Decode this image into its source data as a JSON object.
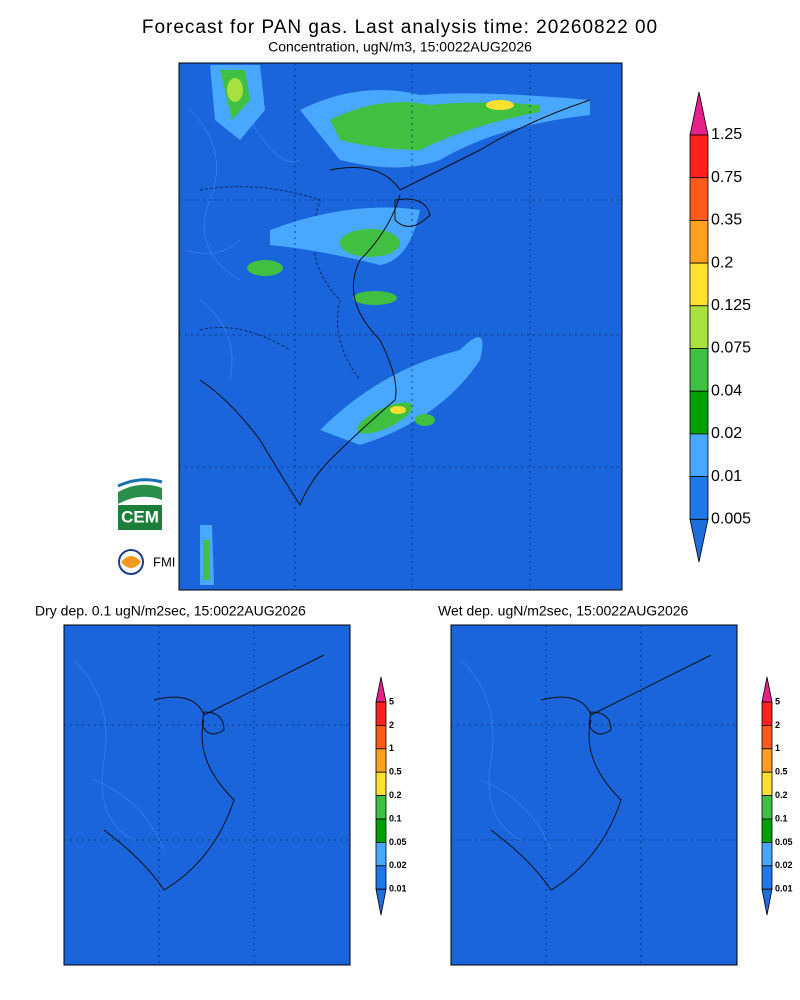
{
  "header": {
    "title": "Forecast for PAN gas. Last analysis time: 20260822 00",
    "subtitle": "Concentration, ugN/m3, 15:0022AUG2026"
  },
  "panels": [
    {
      "title": "Dry dep. 0.1 ugN/m2sec, 15:0022AUG2026"
    },
    {
      "title": "Wet dep. ugN/m2sec, 15:0022AUG2026"
    }
  ],
  "colorbars": [
    {
      "labels": [
        "1.25",
        "0.75",
        "0.35",
        "0.2",
        "0.125",
        "0.075",
        "0.04",
        "0.02",
        "0.01",
        "0.005"
      ],
      "colors": [
        "#e8208c",
        "#ff2020",
        "#ff5a1e",
        "#ffa020",
        "#ffe030",
        "#a8e040",
        "#40c040",
        "#00a000",
        "#48a8ff",
        "#2078e8",
        "#1e6edc"
      ]
    },
    {
      "labels": [
        "5",
        "2",
        "1",
        "0.5",
        "0.2",
        "0.1",
        "0.05",
        "0.02",
        "0.01"
      ],
      "colors": [
        "#e8208c",
        "#ff2020",
        "#ff5a1e",
        "#ffa020",
        "#ffe030",
        "#40c040",
        "#00a000",
        "#48a8ff",
        "#2078e8",
        "#1e6edc"
      ]
    },
    {
      "labels": [
        "5",
        "2",
        "1",
        "0.5",
        "0.2",
        "0.1",
        "0.05",
        "0.02",
        "0.01"
      ],
      "colors": [
        "#e8208c",
        "#ff2020",
        "#ff5a1e",
        "#ffa020",
        "#ffe030",
        "#40c040",
        "#00a000",
        "#48a8ff",
        "#2078e8",
        "#1e6edc"
      ]
    }
  ],
  "logos": [
    "CEM",
    "FMI"
  ]
}
